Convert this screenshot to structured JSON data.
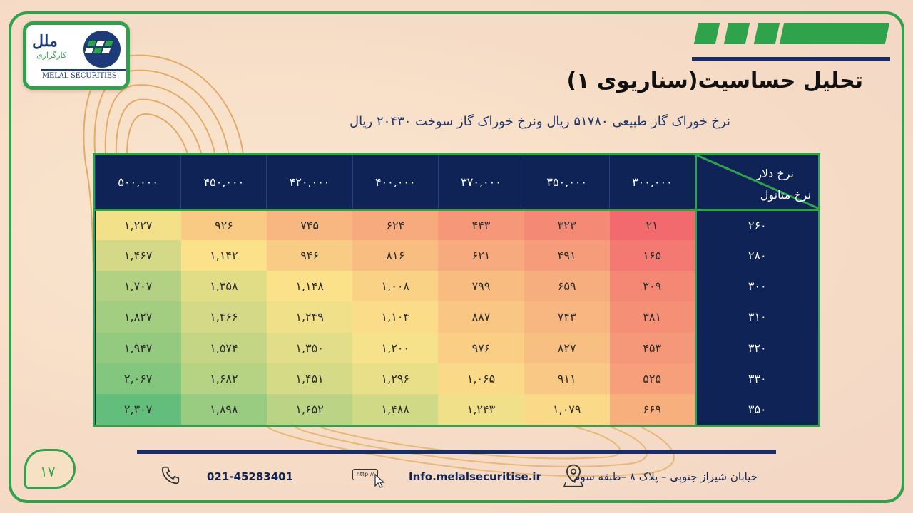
{
  "logo": {
    "name": "ملل",
    "sub": "کارگزاری",
    "latin": "MELAL SECURITIES"
  },
  "title": "تحلیل حساسیت(سناریوی ۱)",
  "subtitle": "نرخ خوراک گاز طبیعی ۵۱۷۸۰ ریال ونرخ خوراک گاز سوخت ۲۰۴۳۰ ریال",
  "table": {
    "corner_top": "نرخ دلار",
    "corner_bottom": "نرخ متانول",
    "columns": [
      "۳۰۰,۰۰۰",
      "۳۵۰,۰۰۰",
      "۳۷۰,۰۰۰",
      "۴۰۰,۰۰۰",
      "۴۲۰,۰۰۰",
      "۴۵۰,۰۰۰",
      "۵۰۰,۰۰۰"
    ],
    "rows": [
      {
        "label": "۲۶۰",
        "values": [
          "۲۱",
          "۳۲۳",
          "۴۴۳",
          "۶۲۴",
          "۷۴۵",
          "۹۲۶",
          "۱,۲۲۷"
        ]
      },
      {
        "label": "۲۸۰",
        "values": [
          "۱۶۵",
          "۴۹۱",
          "۶۲۱",
          "۸۱۶",
          "۹۴۶",
          "۱,۱۴۲",
          "۱,۴۶۷"
        ]
      },
      {
        "label": "۳۰۰",
        "values": [
          "۳۰۹",
          "۶۵۹",
          "۷۹۹",
          "۱,۰۰۸",
          "۱,۱۴۸",
          "۱,۳۵۸",
          "۱,۷۰۷"
        ]
      },
      {
        "label": "۳۱۰",
        "values": [
          "۳۸۱",
          "۷۴۳",
          "۸۸۷",
          "۱,۱۰۴",
          "۱,۲۴۹",
          "۱,۴۶۶",
          "۱,۸۲۷"
        ]
      },
      {
        "label": "۳۲۰",
        "values": [
          "۴۵۳",
          "۸۲۷",
          "۹۷۶",
          "۱,۲۰۰",
          "۱,۳۵۰",
          "۱,۵۷۴",
          "۱,۹۴۷"
        ]
      },
      {
        "label": "۳۳۰",
        "values": [
          "۵۲۵",
          "۹۱۱",
          "۱,۰۶۵",
          "۱,۲۹۶",
          "۱,۴۵۱",
          "۱,۶۸۲",
          "۲,۰۶۷"
        ]
      },
      {
        "label": "۳۵۰",
        "values": [
          "۶۶۹",
          "۱,۰۷۹",
          "۱,۲۴۳",
          "۱,۴۸۸",
          "۱,۶۵۲",
          "۱,۸۹۸",
          "۲,۳۰۷"
        ]
      }
    ],
    "numeric": [
      [
        21,
        323,
        443,
        624,
        745,
        926,
        1227
      ],
      [
        165,
        491,
        621,
        816,
        946,
        1142,
        1467
      ],
      [
        309,
        659,
        799,
        1008,
        1148,
        1358,
        1707
      ],
      [
        381,
        743,
        887,
        1104,
        1249,
        1466,
        1827
      ],
      [
        453,
        827,
        976,
        1200,
        1350,
        1574,
        1947
      ],
      [
        525,
        911,
        1065,
        1296,
        1451,
        1682,
        2067
      ],
      [
        669,
        1079,
        1243,
        1488,
        1652,
        1898,
        2307
      ]
    ],
    "heat_colors": {
      "low": "#f26a6e",
      "mid": "#fbe38a",
      "high": "#63be7b"
    }
  },
  "footer": {
    "page": "۱۷",
    "phone": "021-45283401",
    "url_icon_text": "http://",
    "email": "Info.melalsecuritise.ir",
    "address": "خیابان شیراز جنوبی – پلاک ۸ –طبقه سوم"
  },
  "colors": {
    "accent": "#2fa24c",
    "navy": "#0f2356"
  }
}
